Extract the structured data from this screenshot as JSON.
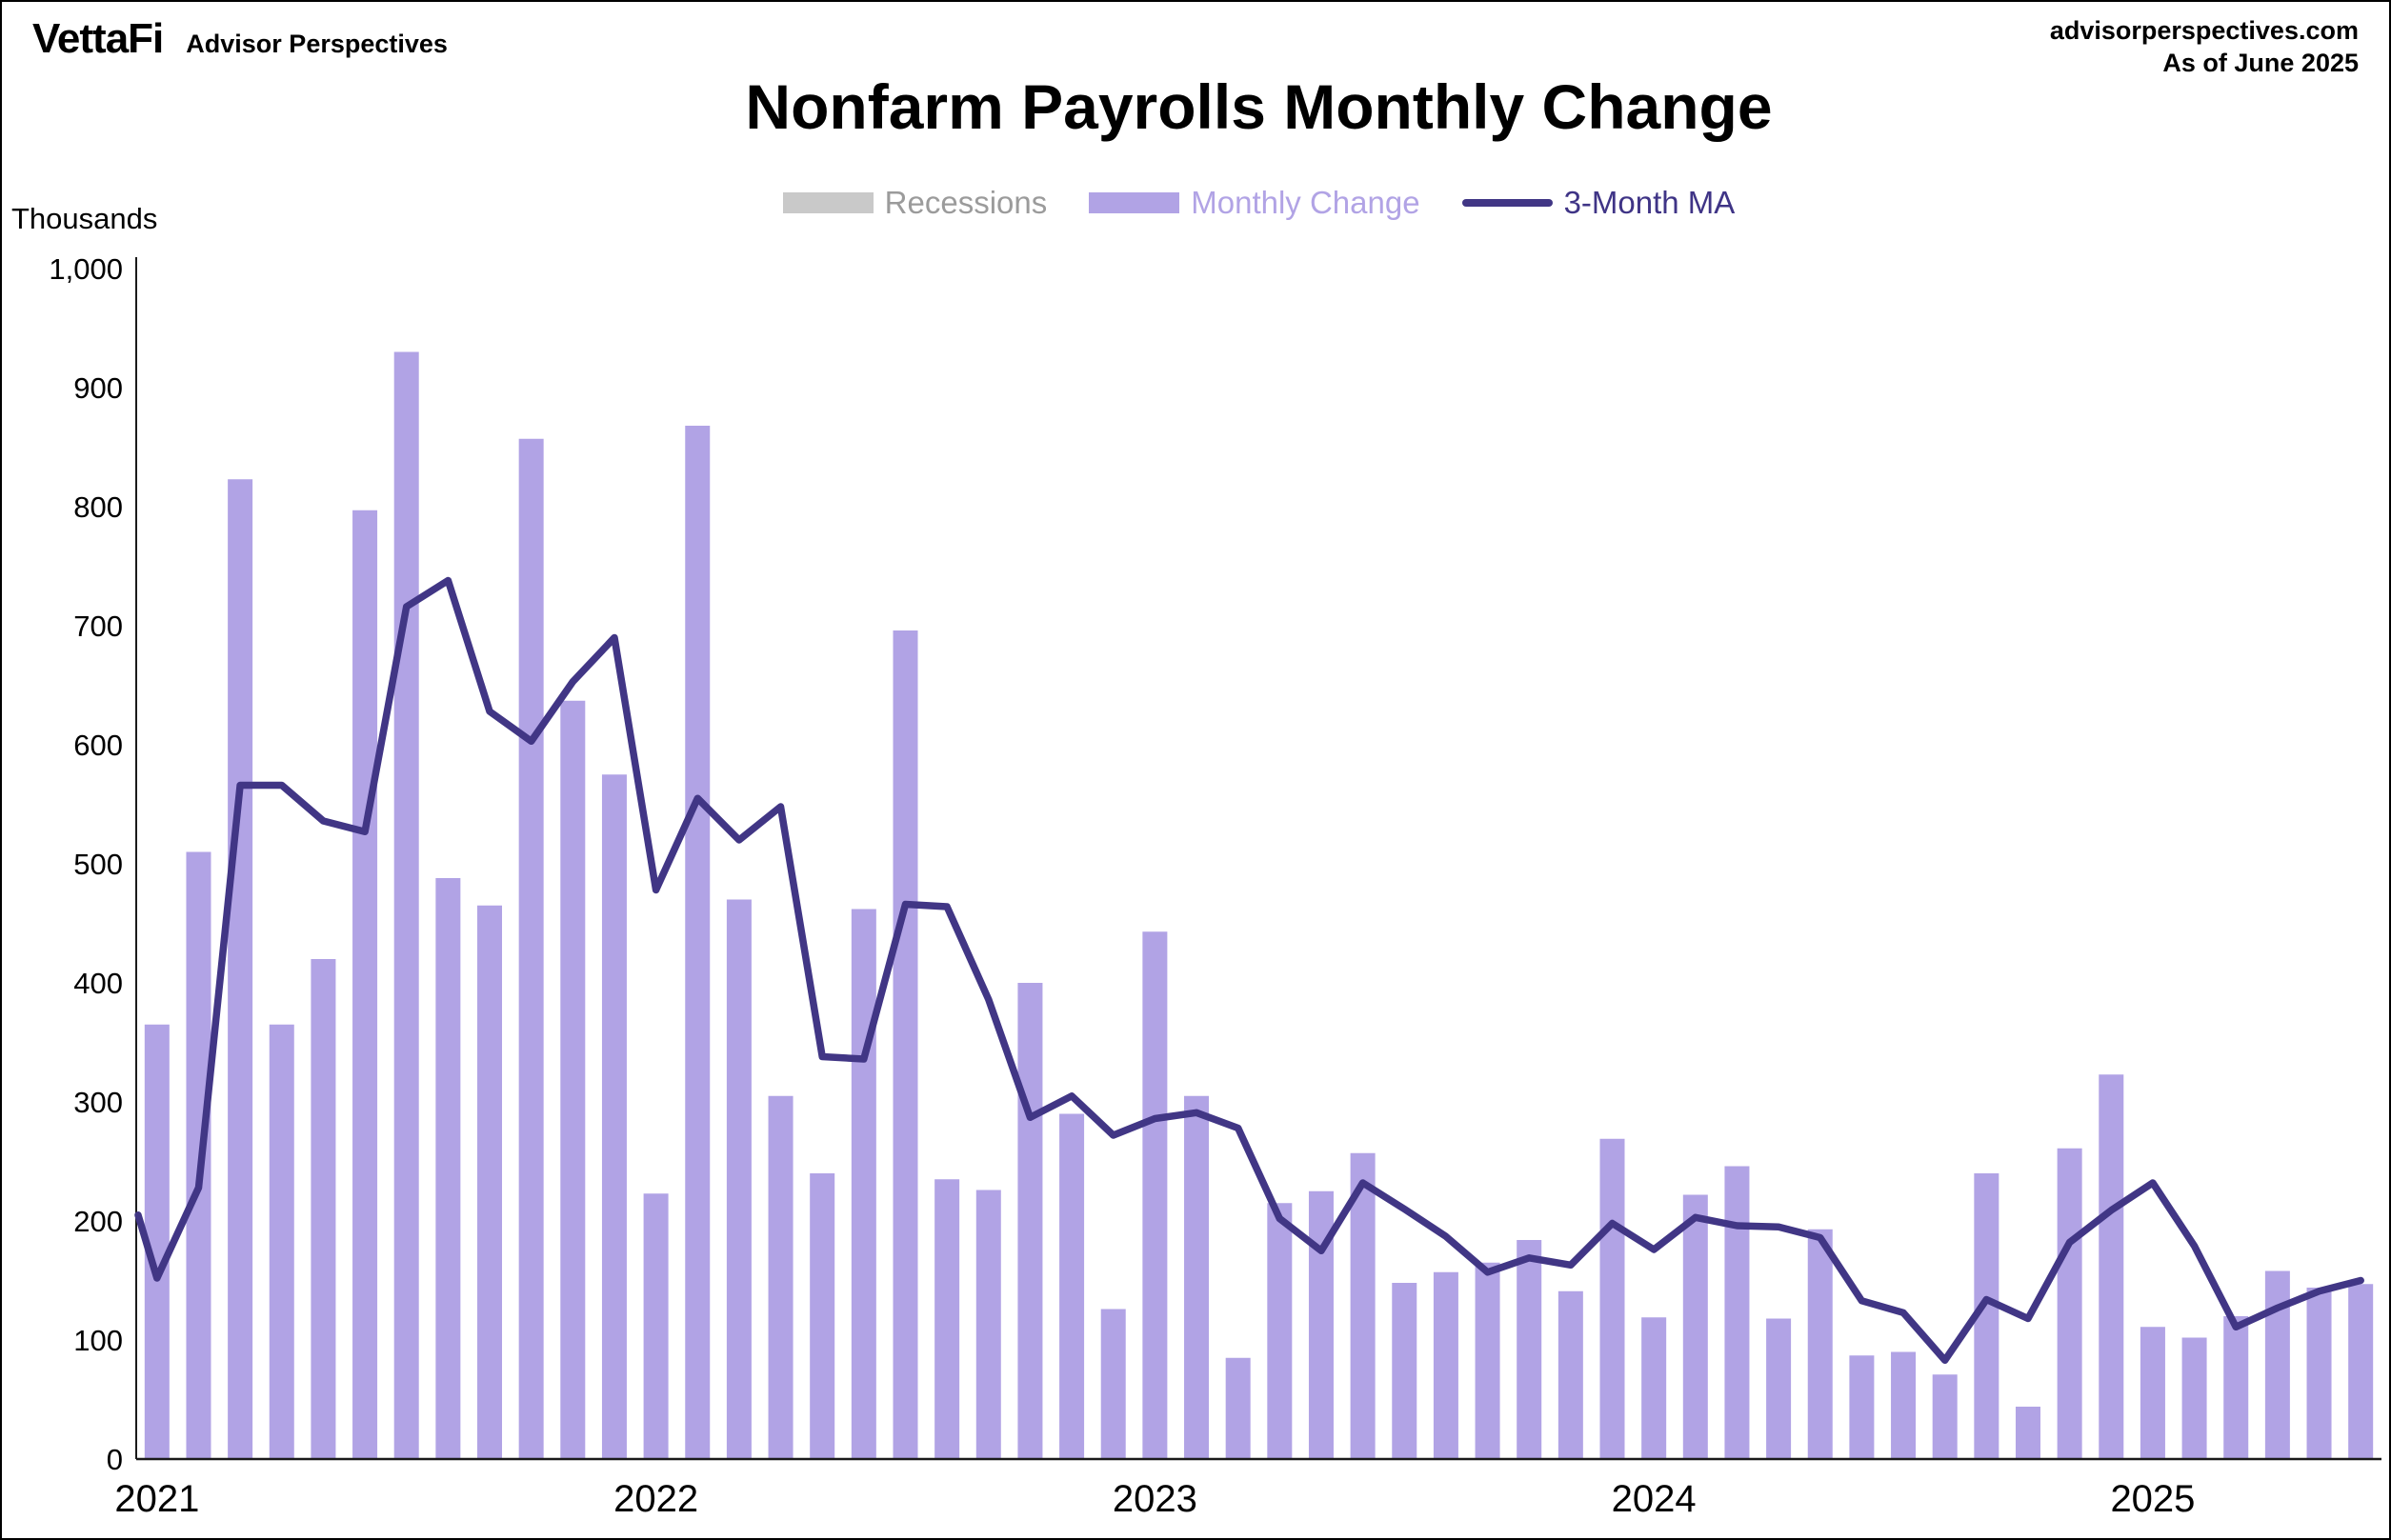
{
  "header": {
    "brand": "VettaFi",
    "brand_tagline": "Advisor Perspectives",
    "website": "advisorperspectives.com",
    "as_of": "As of June 2025",
    "title": "Nonfarm Payrolls Monthly Change",
    "units_label": "Thousands"
  },
  "legend": {
    "recessions": {
      "label": "Recessions",
      "swatch_color": "#c9c9c9",
      "text_color": "#9b9b9b"
    },
    "monthly_change": {
      "label": "Monthly Change",
      "swatch_color": "#b1a3e5",
      "text_color": "#b1a3e5"
    },
    "ma": {
      "label": "3-Month MA",
      "swatch_color": "#413685",
      "text_color": "#3f3486"
    }
  },
  "chart_data": {
    "type": "bar",
    "title": "Nonfarm Payrolls Monthly Change",
    "ylabel": "Thousands",
    "ylim": [
      0,
      1000
    ],
    "ytick_step": 100,
    "grid": false,
    "legend_position": "top-center",
    "x_year_labels": [
      "2021",
      "2022",
      "2023",
      "2024",
      "2025"
    ],
    "year_tick_month_indices": [
      0,
      12,
      24,
      36,
      48
    ],
    "months": [
      "2021-01",
      "2021-02",
      "2021-03",
      "2021-04",
      "2021-05",
      "2021-06",
      "2021-07",
      "2021-08",
      "2021-09",
      "2021-10",
      "2021-11",
      "2021-12",
      "2022-01",
      "2022-02",
      "2022-03",
      "2022-04",
      "2022-05",
      "2022-06",
      "2022-07",
      "2022-08",
      "2022-09",
      "2022-10",
      "2022-11",
      "2022-12",
      "2023-01",
      "2023-02",
      "2023-03",
      "2023-04",
      "2023-05",
      "2023-06",
      "2023-07",
      "2023-08",
      "2023-09",
      "2023-10",
      "2023-11",
      "2023-12",
      "2024-01",
      "2024-02",
      "2024-03",
      "2024-04",
      "2024-05",
      "2024-06",
      "2024-07",
      "2024-08",
      "2024-09",
      "2024-10",
      "2024-11",
      "2024-12",
      "2025-01",
      "2025-02",
      "2025-03",
      "2025-04",
      "2025-05",
      "2025-06"
    ],
    "series": [
      {
        "name": "Monthly Change",
        "type": "bar",
        "color": "#b1a3e5",
        "values": [
          365,
          510,
          823,
          365,
          420,
          797,
          930,
          488,
          465,
          857,
          637,
          575,
          223,
          868,
          470,
          305,
          240,
          462,
          696,
          235,
          226,
          400,
          290,
          126,
          443,
          305,
          85,
          215,
          225,
          257,
          148,
          157,
          165,
          184,
          141,
          269,
          119,
          222,
          246,
          118,
          193,
          87,
          90,
          71,
          240,
          44,
          261,
          323,
          111,
          102,
          120,
          158,
          144,
          147
        ]
      },
      {
        "name": "3-Month MA",
        "type": "line",
        "color": "#413685",
        "lead_value": 205,
        "values": [
          152,
          228,
          566,
          566,
          536,
          527,
          716,
          738,
          628,
          603,
          653,
          690,
          478,
          555,
          520,
          548,
          338,
          336,
          466,
          464,
          386,
          287,
          305,
          272,
          286,
          291,
          278,
          202,
          175,
          232,
          210,
          187,
          157,
          169,
          163,
          198,
          176,
          203,
          196,
          195,
          186,
          133,
          123,
          83,
          134,
          118,
          182,
          209,
          232,
          179,
          111,
          127,
          141,
          150
        ]
      }
    ]
  }
}
